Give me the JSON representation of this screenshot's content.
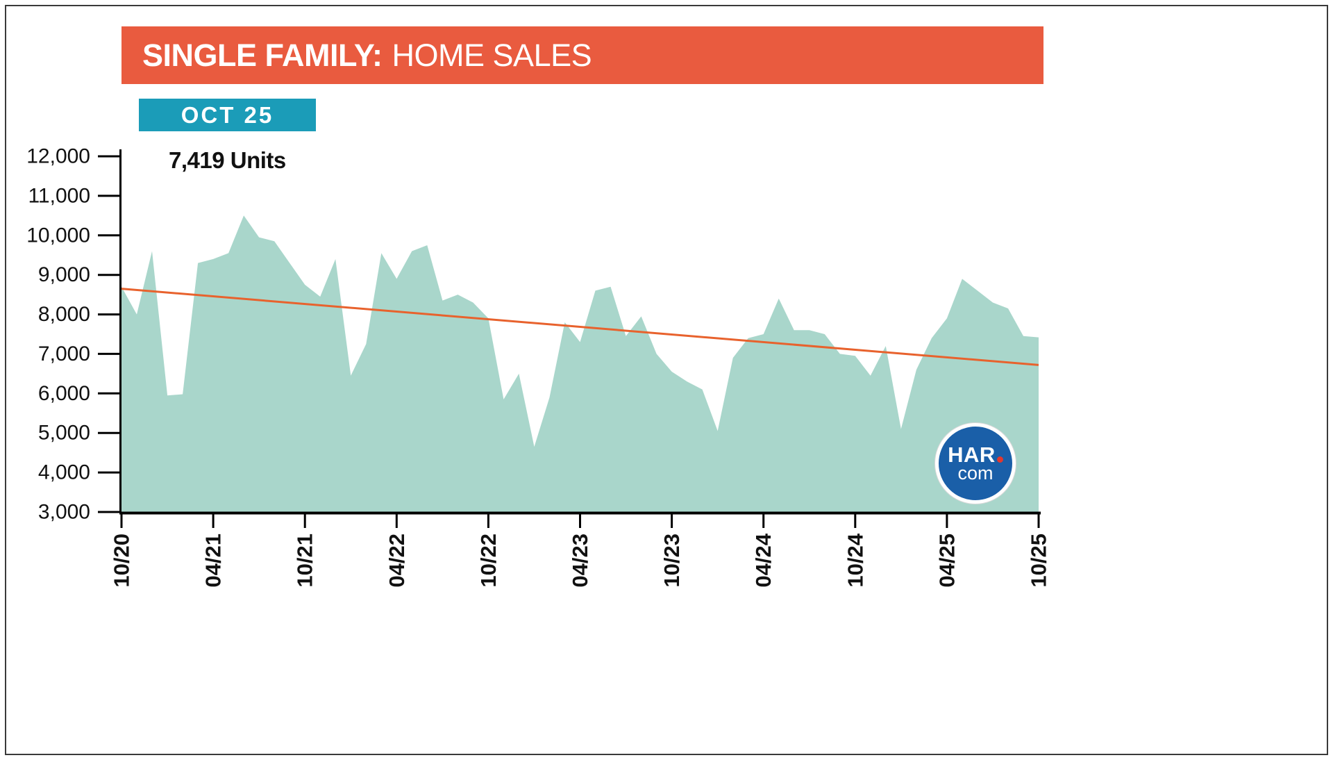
{
  "header": {
    "title_strong": "SINGLE FAMILY:",
    "title_regular": "HOME SALES",
    "bg_color": "#E95B3F",
    "text_color": "#FFFFFF"
  },
  "badge": {
    "label": "OCT 25",
    "bg_color": "#1B9CB8",
    "text_color": "#FFFFFF"
  },
  "current": {
    "units_label": "7,419 Units"
  },
  "logo": {
    "line1": "HAR",
    "line2": "com",
    "bg_color": "#1A5FA8",
    "dot_color": "#E2372E"
  },
  "chart_data": {
    "type": "area",
    "title": "SINGLE FAMILY: HOME SALES",
    "xlabel": "",
    "ylabel": "",
    "ylim": [
      3000,
      12000
    ],
    "y_ticks": [
      3000,
      4000,
      5000,
      6000,
      7000,
      8000,
      9000,
      10000,
      11000,
      12000
    ],
    "x_tick_labels": [
      "10/20",
      "04/21",
      "10/21",
      "04/22",
      "10/22",
      "04/23",
      "10/23",
      "04/24",
      "10/24",
      "04/25",
      "10/25"
    ],
    "x": [
      "10/20",
      "11/20",
      "12/20",
      "01/21",
      "02/21",
      "03/21",
      "04/21",
      "05/21",
      "06/21",
      "07/21",
      "08/21",
      "09/21",
      "10/21",
      "11/21",
      "12/21",
      "01/22",
      "02/22",
      "03/22",
      "04/22",
      "05/22",
      "06/22",
      "07/22",
      "08/22",
      "09/22",
      "10/22",
      "11/22",
      "12/22",
      "01/23",
      "02/23",
      "03/23",
      "04/23",
      "05/23",
      "06/23",
      "07/23",
      "08/23",
      "09/23",
      "10/23",
      "11/23",
      "12/23",
      "01/24",
      "02/24",
      "03/24",
      "04/24",
      "05/24",
      "06/24",
      "07/24",
      "08/24",
      "09/24",
      "10/24",
      "11/24",
      "12/24",
      "01/25",
      "02/25",
      "03/25",
      "04/25",
      "05/25",
      "06/25",
      "07/25",
      "08/25",
      "09/25",
      "10/25"
    ],
    "values": [
      8700,
      8000,
      9600,
      5950,
      5980,
      9300,
      9400,
      9550,
      10500,
      9950,
      9850,
      9300,
      8750,
      8450,
      9400,
      6450,
      7250,
      9550,
      8900,
      9600,
      9750,
      8350,
      8500,
      8300,
      7900,
      5850,
      6500,
      4650,
      5900,
      7800,
      7300,
      8600,
      8700,
      7450,
      7950,
      7000,
      6550,
      6300,
      6100,
      5050,
      6900,
      7400,
      7500,
      8400,
      7600,
      7600,
      7500,
      7000,
      6950,
      6450,
      7200,
      5100,
      6600,
      7400,
      7900,
      8900,
      8600,
      8300,
      8150,
      7450,
      7419
    ],
    "area_color": "#A9D6CB",
    "trend": {
      "type": "linear",
      "start_value": 8650,
      "end_value": 6720,
      "color": "#E8622D"
    },
    "axis_color": "#000000",
    "grid": false,
    "legend": false
  }
}
